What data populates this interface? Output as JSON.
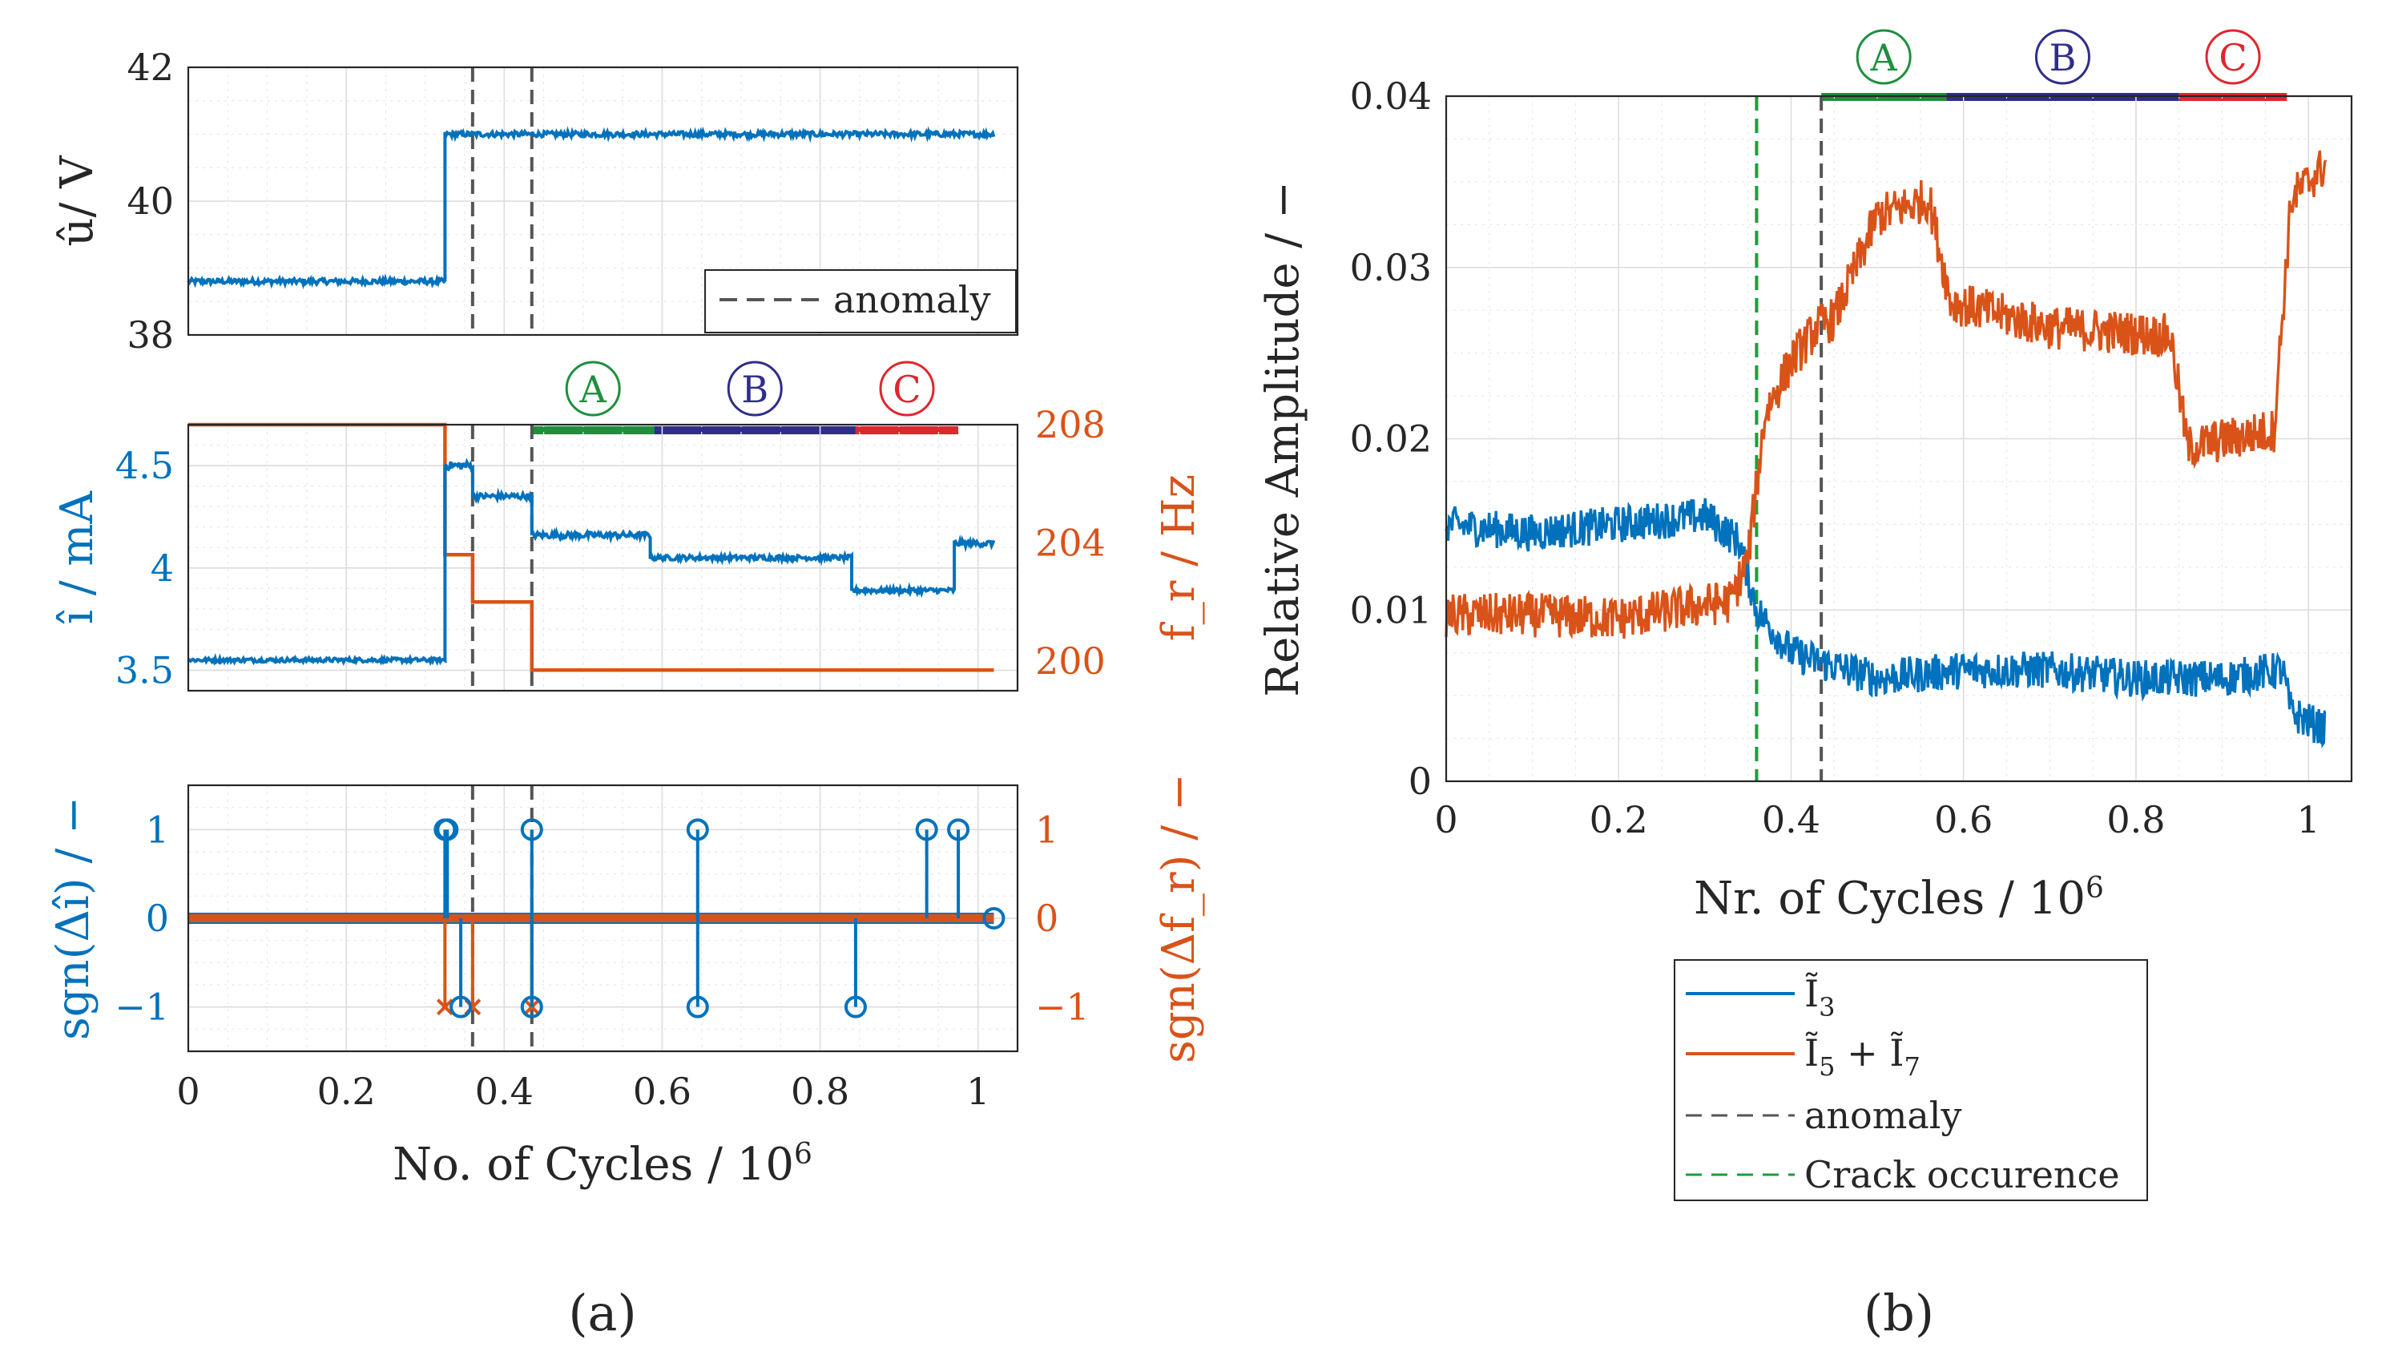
{
  "captions": {
    "a": "(a)",
    "b": "(b)"
  },
  "colors": {
    "blue": "#0072BD",
    "orange": "#D95319",
    "gray": "#555555",
    "green": "#1a9e3a",
    "greenZone": "#1f8f3e",
    "navy": "#2e2e8a",
    "red": "#e0262d"
  },
  "zones": [
    {
      "letter": "A",
      "from": 0.435,
      "to": 0.59,
      "color": "#1f8f3e"
    },
    {
      "letter": "B",
      "from": 0.59,
      "to": 0.845,
      "color": "#2e2e8a"
    },
    {
      "letter": "C",
      "from": 0.845,
      "to": 0.975,
      "color": "#e0262d"
    }
  ],
  "zones_b": [
    {
      "letter": "A",
      "from": 0.435,
      "to": 0.58,
      "color": "#1f8f3e"
    },
    {
      "letter": "B",
      "from": 0.58,
      "to": 0.85,
      "color": "#2e2e8a"
    },
    {
      "letter": "C",
      "from": 0.85,
      "to": 0.975,
      "color": "#e0262d"
    }
  ],
  "chart_data": [
    {
      "id": "a1",
      "type": "line",
      "ylabel": "û/ V",
      "xlim": [
        0,
        1.05
      ],
      "ylim": [
        38,
        42
      ],
      "yticks": [
        38,
        40,
        42
      ],
      "anomaly_x": [
        0.36,
        0.435
      ],
      "legend": [
        {
          "label": "anomaly",
          "style": "dashed",
          "color": "#555555"
        }
      ],
      "series": [
        {
          "name": "û",
          "color": "#0072BD",
          "segments": [
            {
              "x0": 0.0,
              "x1": 0.325,
              "y": 38.8,
              "noise": 0.04
            },
            {
              "x0": 0.325,
              "x1": 1.02,
              "y": 41.0,
              "noise": 0.04
            }
          ]
        }
      ]
    },
    {
      "id": "a2",
      "type": "line",
      "ylabel_left": "î / mA",
      "ylabel_right": "f_r / Hz",
      "xlim": [
        0,
        1.05
      ],
      "ylim_left": [
        3.4,
        4.7
      ],
      "yticks_left": [
        3.5,
        4,
        4.5
      ],
      "ylim_right": [
        199,
        208
      ],
      "yticks_right": [
        200,
        204,
        208
      ],
      "anomaly_x": [
        0.36,
        0.435
      ],
      "series": [
        {
          "name": "î",
          "axis": "left",
          "color": "#0072BD",
          "segments": [
            {
              "x0": 0.0,
              "x1": 0.325,
              "y": 3.55,
              "noise": 0.01
            },
            {
              "x0": 0.325,
              "x1": 0.36,
              "y": 4.5,
              "noise": 0.02
            },
            {
              "x0": 0.36,
              "x1": 0.435,
              "y": 4.35,
              "noise": 0.015
            },
            {
              "x0": 0.435,
              "x1": 0.585,
              "y": 4.16,
              "noise": 0.015
            },
            {
              "x0": 0.585,
              "x1": 0.84,
              "y": 4.05,
              "noise": 0.012
            },
            {
              "x0": 0.84,
              "x1": 0.97,
              "y": 3.89,
              "noise": 0.012
            },
            {
              "x0": 0.97,
              "x1": 1.02,
              "y": 4.12,
              "noise": 0.015
            }
          ]
        },
        {
          "name": "f_r",
          "axis": "right",
          "color": "#D95319",
          "steps": [
            {
              "x0": 0.0,
              "x1": 0.325,
              "y": 208
            },
            {
              "x0": 0.325,
              "x1": 0.36,
              "y": 203.6
            },
            {
              "x0": 0.36,
              "x1": 0.435,
              "y": 202
            },
            {
              "x0": 0.435,
              "x1": 1.02,
              "y": 199.7
            }
          ]
        }
      ]
    },
    {
      "id": "a3",
      "type": "stem",
      "xlabel": "No. of Cycles / 10^6",
      "xlabel_text": "No. of Cycles / 10",
      "ylabel_left": "sgn(Δî) / −",
      "ylabel_right": "sgn(Δf_r) / −",
      "xlim": [
        0,
        1.05
      ],
      "xticks": [
        0,
        0.2,
        0.4,
        0.6,
        0.8,
        1
      ],
      "ylim": [
        -1.5,
        1.5
      ],
      "yticks_left": [
        -1,
        0,
        1
      ],
      "yticks_right": [
        -1,
        0,
        1
      ],
      "anomaly_x": [
        0.36,
        0.435
      ],
      "series": [
        {
          "name": "sgn(Δî)",
          "color": "#0072BD",
          "marker": "circle",
          "points": [
            [
              0.325,
              1
            ],
            [
              0.328,
              1
            ],
            [
              0.345,
              -1
            ],
            [
              0.435,
              1
            ],
            [
              0.435,
              -1
            ],
            [
              0.645,
              1
            ],
            [
              0.645,
              -1
            ],
            [
              0.845,
              -1
            ],
            [
              0.935,
              1
            ],
            [
              0.975,
              1
            ]
          ]
        },
        {
          "name": "sgn(Δf_r)",
          "color": "#D95319",
          "marker": "x",
          "points": [
            [
              0.325,
              -1
            ],
            [
              0.36,
              -1
            ],
            [
              0.435,
              -1
            ]
          ]
        }
      ]
    },
    {
      "id": "b",
      "type": "line",
      "xlabel": "Nr. of Cycles / 10^6",
      "xlabel_text": "Nr. of Cycles / 10",
      "ylabel": "Relative Amplitude / −",
      "xlim": [
        0,
        1.05
      ],
      "xticks": [
        0,
        0.2,
        0.4,
        0.6,
        0.8,
        1
      ],
      "ylim": [
        0,
        0.04
      ],
      "yticks": [
        0,
        0.01,
        0.02,
        0.03,
        0.04
      ],
      "anomaly_x": [
        0.435
      ],
      "crack_x": [
        0.36
      ],
      "legend": [
        {
          "label": "Ĩ3",
          "main": "Ĩ",
          "sub": "3",
          "color": "#0072BD",
          "style": "solid"
        },
        {
          "label": "Ĩ5 + Ĩ7",
          "main": "Ĩ",
          "sub": "5",
          "main2": " + Ĩ",
          "sub2": "7",
          "color": "#D95319",
          "style": "solid"
        },
        {
          "label": "anomaly",
          "color": "#555555",
          "style": "dashed"
        },
        {
          "label": "Crack occurence",
          "color": "#1a9e3a",
          "style": "dashed"
        }
      ],
      "series": [
        {
          "name": "Ĩ3",
          "color": "#0072BD",
          "anchors": [
            [
              0,
              0.015
            ],
            [
              0.1,
              0.0145
            ],
            [
              0.2,
              0.015
            ],
            [
              0.3,
              0.0155
            ],
            [
              0.34,
              0.014
            ],
            [
              0.36,
              0.01
            ],
            [
              0.4,
              0.0075
            ],
            [
              0.43,
              0.007
            ],
            [
              0.5,
              0.006
            ],
            [
              0.6,
              0.0065
            ],
            [
              0.7,
              0.0065
            ],
            [
              0.8,
              0.006
            ],
            [
              0.9,
              0.006
            ],
            [
              0.97,
              0.0065
            ],
            [
              0.98,
              0.004
            ],
            [
              1.02,
              0.003
            ]
          ],
          "noise": 0.0011
        },
        {
          "name": "Ĩ5 + Ĩ7",
          "color": "#D95319",
          "anchors": [
            [
              0,
              0.0097
            ],
            [
              0.1,
              0.0097
            ],
            [
              0.2,
              0.0095
            ],
            [
              0.3,
              0.0103
            ],
            [
              0.33,
              0.0105
            ],
            [
              0.35,
              0.013
            ],
            [
              0.37,
              0.0215
            ],
            [
              0.4,
              0.0245
            ],
            [
              0.43,
              0.0265
            ],
            [
              0.45,
              0.027
            ],
            [
              0.5,
              0.033
            ],
            [
              0.56,
              0.034
            ],
            [
              0.585,
              0.028
            ],
            [
              0.7,
              0.0265
            ],
            [
              0.84,
              0.026
            ],
            [
              0.86,
              0.0195
            ],
            [
              0.96,
              0.0205
            ],
            [
              0.98,
              0.034
            ],
            [
              1.02,
              0.036
            ]
          ],
          "noise": 0.0013
        }
      ]
    }
  ]
}
